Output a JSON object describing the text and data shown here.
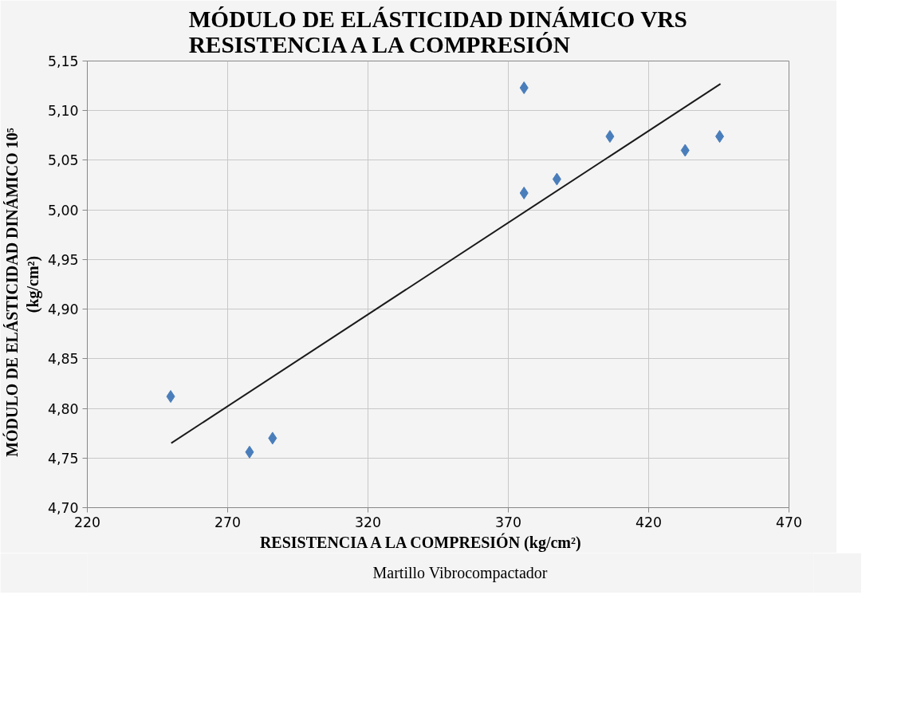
{
  "chart_data": {
    "type": "scatter",
    "title": "MÓDULO DE ELÁSTICIDAD DINÁMICO VRS\nRESISTENCIA  A LA COMPRESIÓN",
    "xlabel": "RESISTENCIA  A LA COMPRESIÓN        (kg/cm²)",
    "ylabel": "MÓDULO  DE  ELÁSTICIDAD  DINÁMICO  10⁵\n(kg/cm²)",
    "xlim": [
      220,
      470
    ],
    "xticks": [
      220,
      270,
      320,
      370,
      420,
      470
    ],
    "ylim": [
      4.7,
      5.15
    ],
    "yticks": [
      {
        "value": 4.7,
        "label": "4,70"
      },
      {
        "value": 4.75,
        "label": "4,75"
      },
      {
        "value": 4.8,
        "label": "4,80"
      },
      {
        "value": 4.85,
        "label": "4,85"
      },
      {
        "value": 4.9,
        "label": "4,90"
      },
      {
        "value": 4.95,
        "label": "4,95"
      },
      {
        "value": 5.0,
        "label": "5,00"
      },
      {
        "value": 5.05,
        "label": "5,05"
      },
      {
        "value": 5.1,
        "label": "5,10"
      },
      {
        "value": 5.15,
        "label": "5,15"
      }
    ],
    "grid": true,
    "legend": "bottom",
    "series": [
      {
        "name": "Martillo Vibrocompactador",
        "marker": "diamond",
        "color": "#4a7ebb",
        "x": [
          249.7,
          277.8,
          286.0,
          375.6,
          375.6,
          387.3,
          406.2,
          433.0,
          445.3
        ],
        "values": [
          4.812,
          4.756,
          4.77,
          5.123,
          5.017,
          5.031,
          5.074,
          5.06,
          5.074
        ]
      },
      {
        "type": "line",
        "marker": "none",
        "color": "#1a1a1a",
        "x": [
          249.9,
          445.6
        ],
        "values": [
          4.765,
          5.127
        ]
      }
    ]
  }
}
